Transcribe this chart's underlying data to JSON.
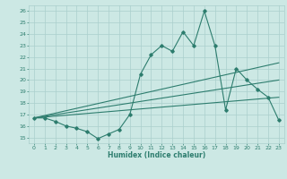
{
  "title": "",
  "xlabel": "Humidex (Indice chaleur)",
  "bg_color": "#cce8e4",
  "grid_color": "#aacfcc",
  "line_color": "#2d7d6e",
  "xlim": [
    -0.5,
    23.5
  ],
  "ylim": [
    14.5,
    26.5
  ],
  "xticks": [
    0,
    1,
    2,
    3,
    4,
    5,
    6,
    7,
    8,
    9,
    10,
    11,
    12,
    13,
    14,
    15,
    16,
    17,
    18,
    19,
    20,
    21,
    22,
    23
  ],
  "yticks": [
    15,
    16,
    17,
    18,
    19,
    20,
    21,
    22,
    23,
    24,
    25,
    26
  ],
  "series1_x": [
    0,
    1,
    2,
    3,
    4,
    5,
    6,
    7,
    8,
    9,
    10,
    11,
    12,
    13,
    14,
    15,
    16,
    17,
    18,
    19,
    20,
    21,
    22,
    23
  ],
  "series1_y": [
    16.7,
    16.7,
    16.4,
    16.0,
    15.8,
    15.5,
    14.9,
    15.3,
    15.7,
    17.0,
    20.5,
    22.2,
    23.0,
    22.5,
    24.2,
    23.0,
    26.0,
    23.0,
    17.4,
    21.0,
    20.0,
    19.2,
    18.5,
    16.5
  ],
  "series2_x": [
    0,
    23
  ],
  "series2_y": [
    16.7,
    21.5
  ],
  "series3_x": [
    0,
    23
  ],
  "series3_y": [
    16.7,
    20.0
  ],
  "series4_x": [
    0,
    23
  ],
  "series4_y": [
    16.7,
    18.5
  ]
}
